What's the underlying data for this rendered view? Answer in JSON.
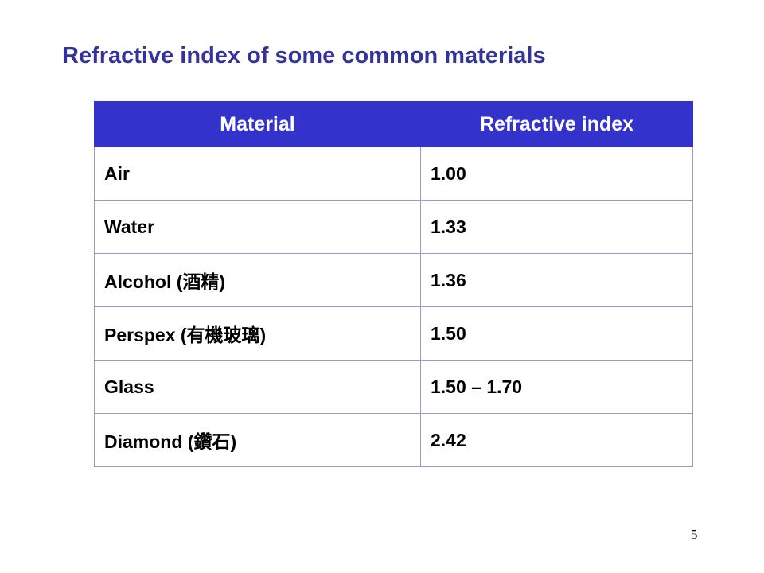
{
  "title": "Refractive index of some common materials",
  "table": {
    "header": [
      "Material",
      "Refractive index"
    ],
    "rows": [
      [
        "Air",
        "1.00"
      ],
      [
        "Water",
        "1.33"
      ],
      [
        "Alcohol (酒精)",
        "1.36"
      ],
      [
        "Perspex (有機玻璃)",
        "1.50"
      ],
      [
        "Glass",
        "1.50 – 1.70"
      ],
      [
        "Diamond (鑽石)",
        "2.42"
      ]
    ]
  },
  "page_number": "5"
}
